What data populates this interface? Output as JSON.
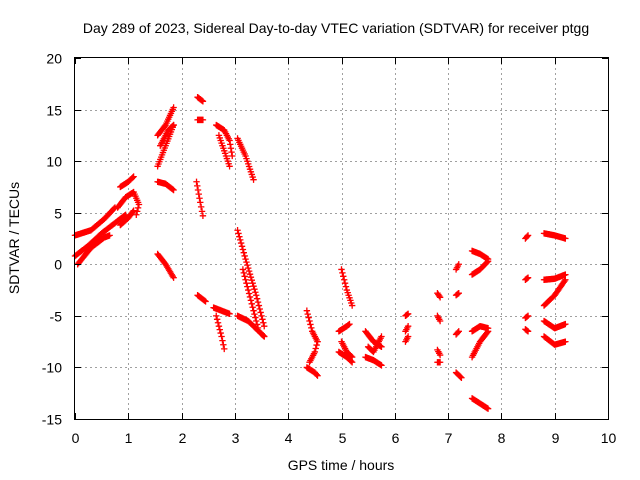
{
  "chart_data": {
    "type": "scatter",
    "title": "Day 289 of 2023, Sidereal Day-to-day VTEC variation (SDTVAR) for receiver ptgg",
    "xlabel": "GPS time / hours",
    "ylabel": "SDTVAR / TECUs",
    "xlim": [
      0,
      10
    ],
    "ylim": [
      -15,
      20
    ],
    "xticks": [
      "0",
      "1",
      "2",
      "3",
      "4",
      "5",
      "6",
      "7",
      "8",
      "9",
      "10"
    ],
    "yticks": [
      "-15",
      "-10",
      "-5",
      "0",
      "5",
      "10",
      "15",
      "20"
    ],
    "grid": true,
    "marker": "+",
    "color": "#ff0000",
    "series": [
      {
        "tracks": [
          [
            [
              0.0,
              0.8
            ],
            [
              0.25,
              1.8
            ],
            [
              0.5,
              3.0
            ],
            [
              0.75,
              4.0
            ],
            [
              0.95,
              4.8
            ]
          ],
          [
            [
              0.0,
              2.8
            ],
            [
              0.3,
              3.3
            ],
            [
              0.55,
              4.4
            ],
            [
              0.75,
              5.5
            ]
          ],
          [
            [
              0.05,
              0.0
            ],
            [
              0.3,
              1.6
            ],
            [
              0.55,
              2.6
            ],
            [
              0.65,
              2.8
            ]
          ],
          [
            [
              0.8,
              5.5
            ],
            [
              0.95,
              6.5
            ],
            [
              1.1,
              7.0
            ],
            [
              1.2,
              5.8
            ],
            [
              1.15,
              4.8
            ]
          ],
          [
            [
              0.85,
              7.5
            ],
            [
              1.0,
              8.0
            ],
            [
              1.1,
              8.5
            ]
          ],
          [
            [
              0.85,
              3.8
            ],
            [
              1.0,
              4.5
            ],
            [
              1.1,
              5.2
            ]
          ],
          [
            [
              1.55,
              9.5
            ],
            [
              1.7,
              11.5
            ],
            [
              1.85,
              13.5
            ]
          ],
          [
            [
              1.55,
              12.5
            ],
            [
              1.7,
              13.5
            ],
            [
              1.85,
              15.2
            ]
          ],
          [
            [
              1.6,
              11.5
            ],
            [
              1.75,
              13.0
            ],
            [
              1.85,
              13.5
            ]
          ],
          [
            [
              1.55,
              8.0
            ],
            [
              1.7,
              7.8
            ],
            [
              1.85,
              7.2
            ]
          ],
          [
            [
              1.55,
              1.0
            ],
            [
              1.7,
              0.0
            ],
            [
              1.85,
              -1.3
            ]
          ],
          [
            [
              2.3,
              14.0
            ],
            [
              2.4,
              14.0
            ]
          ],
          [
            [
              2.3,
              16.2
            ],
            [
              2.4,
              15.8
            ]
          ],
          [
            [
              2.28,
              8.0
            ],
            [
              2.35,
              6.0
            ],
            [
              2.4,
              4.7
            ]
          ],
          [
            [
              2.3,
              -3.0
            ],
            [
              2.45,
              -3.6
            ]
          ],
          [
            [
              2.65,
              13.5
            ],
            [
              2.8,
              13.0
            ],
            [
              2.9,
              12.0
            ],
            [
              2.95,
              10.5
            ]
          ],
          [
            [
              2.7,
              12.5
            ],
            [
              2.8,
              11.0
            ],
            [
              2.9,
              9.5
            ]
          ],
          [
            [
              2.6,
              -4.2
            ],
            [
              2.75,
              -4.5
            ],
            [
              2.9,
              -4.8
            ]
          ],
          [
            [
              2.65,
              -5.0
            ],
            [
              2.75,
              -7.0
            ],
            [
              2.8,
              -8.2
            ]
          ],
          [
            [
              3.05,
              12.2
            ],
            [
              3.2,
              10.5
            ],
            [
              3.35,
              8.2
            ]
          ],
          [
            [
              3.05,
              3.3
            ],
            [
              3.2,
              0.5
            ],
            [
              3.4,
              -3.0
            ],
            [
              3.55,
              -6.0
            ]
          ],
          [
            [
              3.15,
              -0.5
            ],
            [
              3.3,
              -3.5
            ],
            [
              3.45,
              -6.5
            ],
            [
              3.55,
              -7.0
            ]
          ],
          [
            [
              3.05,
              -5.0
            ],
            [
              3.25,
              -5.5
            ],
            [
              3.45,
              -6.5
            ],
            [
              3.55,
              -7.0
            ]
          ],
          [
            [
              4.35,
              -4.5
            ],
            [
              4.45,
              -6.5
            ],
            [
              4.55,
              -7.5
            ]
          ],
          [
            [
              4.35,
              -10.0
            ],
            [
              4.5,
              -10.5
            ],
            [
              4.55,
              -10.8
            ]
          ],
          [
            [
              4.4,
              -9.5
            ],
            [
              4.5,
              -8.5
            ],
            [
              4.55,
              -7.5
            ]
          ],
          [
            [
              5.0,
              -0.5
            ],
            [
              5.1,
              -2.5
            ],
            [
              5.2,
              -4.0
            ]
          ],
          [
            [
              4.95,
              -8.5
            ],
            [
              5.1,
              -9.0
            ],
            [
              5.2,
              -9.5
            ]
          ],
          [
            [
              4.95,
              -6.5
            ],
            [
              5.1,
              -6.0
            ],
            [
              5.15,
              -5.8
            ]
          ],
          [
            [
              5.0,
              -7.5
            ],
            [
              5.1,
              -8.5
            ],
            [
              5.2,
              -9.0
            ]
          ],
          [
            [
              5.45,
              -6.5
            ],
            [
              5.6,
              -7.5
            ],
            [
              5.75,
              -8.0
            ]
          ],
          [
            [
              5.45,
              -9.0
            ],
            [
              5.6,
              -9.3
            ],
            [
              5.75,
              -9.8
            ]
          ],
          [
            [
              5.5,
              -8.0
            ],
            [
              5.6,
              -8.5
            ],
            [
              5.75,
              -7.0
            ]
          ],
          [
            [
              6.2,
              -5.0
            ],
            [
              6.25,
              -4.8
            ]
          ],
          [
            [
              6.2,
              -6.5
            ],
            [
              6.25,
              -6.0
            ]
          ],
          [
            [
              6.2,
              -7.5
            ],
            [
              6.25,
              -7.0
            ]
          ],
          [
            [
              6.8,
              -2.8
            ],
            [
              6.85,
              -3.2
            ]
          ],
          [
            [
              6.8,
              -5.0
            ],
            [
              6.85,
              -5.5
            ]
          ],
          [
            [
              6.8,
              -8.3
            ],
            [
              6.85,
              -8.8
            ]
          ],
          [
            [
              6.8,
              -9.5
            ],
            [
              6.85,
              -9.5
            ]
          ],
          [
            [
              7.15,
              -10.5
            ],
            [
              7.25,
              -11.0
            ]
          ],
          [
            [
              7.15,
              -6.8
            ],
            [
              7.2,
              -6.5
            ]
          ],
          [
            [
              7.15,
              -3.0
            ],
            [
              7.2,
              -2.8
            ]
          ],
          [
            [
              7.15,
              -0.5
            ],
            [
              7.2,
              0.0
            ]
          ],
          [
            [
              7.45,
              1.3
            ],
            [
              7.6,
              1.0
            ],
            [
              7.75,
              0.5
            ]
          ],
          [
            [
              7.45,
              -1.0
            ],
            [
              7.6,
              -0.5
            ],
            [
              7.75,
              0.3
            ]
          ],
          [
            [
              7.45,
              -9.0
            ],
            [
              7.6,
              -7.5
            ],
            [
              7.75,
              -6.5
            ]
          ],
          [
            [
              7.45,
              -6.5
            ],
            [
              7.6,
              -6.0
            ],
            [
              7.75,
              -6.2
            ]
          ],
          [
            [
              7.45,
              -13.0
            ],
            [
              7.6,
              -13.5
            ],
            [
              7.75,
              -14.0
            ]
          ],
          [
            [
              8.45,
              2.5
            ],
            [
              8.5,
              2.8
            ]
          ],
          [
            [
              8.45,
              -1.5
            ],
            [
              8.5,
              -1.3
            ]
          ],
          [
            [
              8.45,
              -5.2
            ],
            [
              8.5,
              -5.0
            ]
          ],
          [
            [
              8.45,
              -6.3
            ],
            [
              8.5,
              -6.5
            ]
          ],
          [
            [
              8.8,
              3.0
            ],
            [
              9.0,
              2.8
            ],
            [
              9.2,
              2.5
            ]
          ],
          [
            [
              8.8,
              -1.5
            ],
            [
              9.0,
              -1.4
            ],
            [
              9.2,
              -1.0
            ]
          ],
          [
            [
              8.8,
              -4.0
            ],
            [
              9.0,
              -3.0
            ],
            [
              9.2,
              -1.5
            ]
          ],
          [
            [
              8.8,
              -5.5
            ],
            [
              9.0,
              -6.2
            ],
            [
              9.2,
              -5.8
            ]
          ],
          [
            [
              8.8,
              -7.0
            ],
            [
              9.0,
              -7.8
            ],
            [
              9.2,
              -7.5
            ]
          ]
        ]
      }
    ]
  }
}
